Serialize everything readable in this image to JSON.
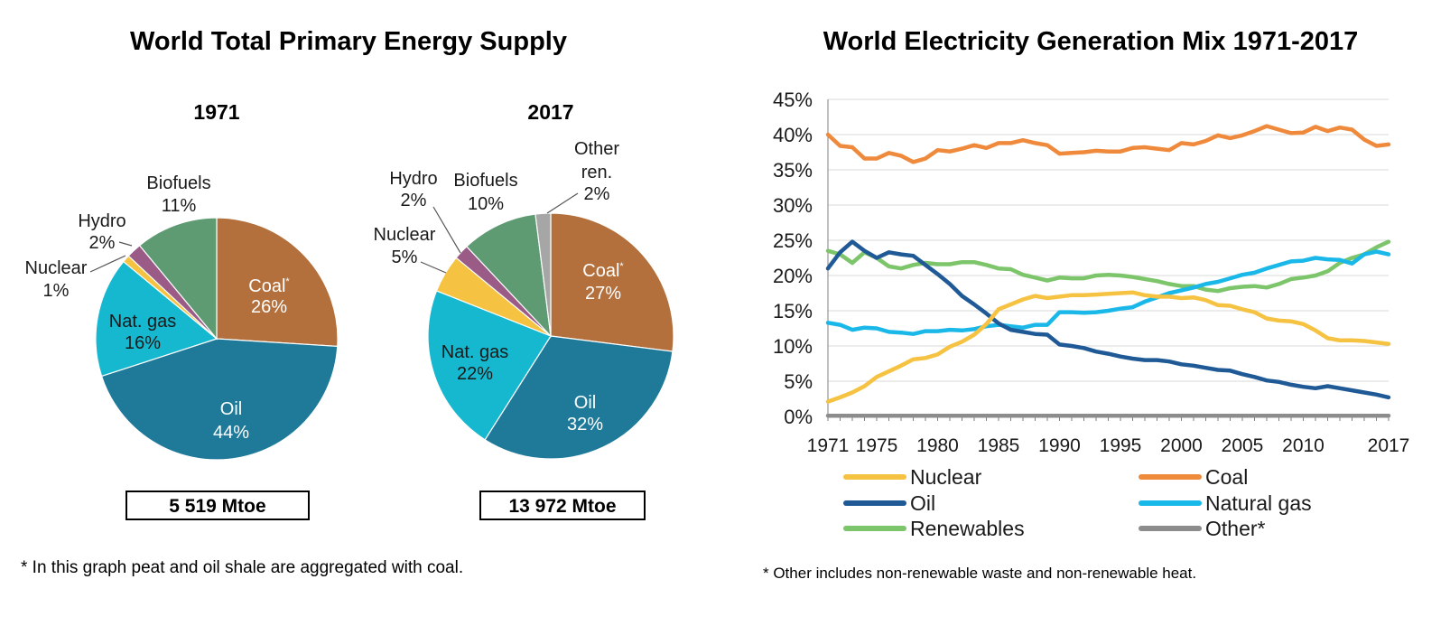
{
  "left_panel": {
    "title": "World Total Primary Energy Supply",
    "footnote": "* In this graph peat and oil shale are aggregated with coal."
  },
  "right_panel": {
    "title": "World Electricity Generation Mix 1971-2017",
    "footnote": "* Other includes non-renewable waste and non-renewable heat."
  },
  "chart_data": [
    {
      "type": "pie",
      "title": "1971",
      "total_label": "5 519 Mtoe",
      "slices": [
        {
          "name": "Coal",
          "value": 26,
          "label": "Coal",
          "asterisk": "*",
          "pct": "26%",
          "color": "#b4703c",
          "text_color": "#ffffff"
        },
        {
          "name": "Oil",
          "value": 44,
          "label": "Oil",
          "pct": "44%",
          "color": "#1f7a9a",
          "text_color": "#ffffff"
        },
        {
          "name": "Nat. gas",
          "value": 16,
          "label": "Nat. gas",
          "pct": "16%",
          "color": "#16b8d0",
          "text_color": "#1a1a1a"
        },
        {
          "name": "Nuclear",
          "value": 1,
          "label": "Nuclear",
          "pct": "1%",
          "color": "#f5c242",
          "text_color": "#1a1a1a"
        },
        {
          "name": "Hydro",
          "value": 2,
          "label": "Hydro",
          "pct": "2%",
          "color": "#9a5b86",
          "text_color": "#1a1a1a"
        },
        {
          "name": "Biofuels",
          "value": 11,
          "label": "Biofuels",
          "pct": "11%",
          "color": "#5e9a72",
          "text_color": "#1a1a1a"
        }
      ]
    },
    {
      "type": "pie",
      "title": "2017",
      "total_label": "13 972 Mtoe",
      "slices": [
        {
          "name": "Coal",
          "value": 27,
          "label": "Coal",
          "asterisk": "*",
          "pct": "27%",
          "color": "#b4703c",
          "text_color": "#ffffff"
        },
        {
          "name": "Oil",
          "value": 32,
          "label": "Oil",
          "pct": "32%",
          "color": "#1f7a9a",
          "text_color": "#ffffff"
        },
        {
          "name": "Nat. gas",
          "value": 22,
          "label": "Nat. gas",
          "pct": "22%",
          "color": "#16b8d0",
          "text_color": "#1a1a1a"
        },
        {
          "name": "Nuclear",
          "value": 5,
          "label": "Nuclear",
          "pct": "5%",
          "color": "#f5c242",
          "text_color": "#1a1a1a"
        },
        {
          "name": "Hydro",
          "value": 2,
          "label": "Hydro",
          "pct": "2%",
          "color": "#9a5b86",
          "text_color": "#1a1a1a"
        },
        {
          "name": "Biofuels",
          "value": 10,
          "label": "Biofuels",
          "pct": "10%",
          "color": "#5e9a72",
          "text_color": "#1a1a1a"
        },
        {
          "name": "Other ren.",
          "value": 2,
          "label": "Other ren.",
          "pct": "2%",
          "color": "#a6a6a6",
          "text_color": "#1a1a1a"
        }
      ]
    },
    {
      "type": "line",
      "title": "",
      "xlabel": "",
      "ylabel": "",
      "xlim": [
        1971,
        2017
      ],
      "ylim": [
        0,
        45
      ],
      "xticks": [
        1971,
        1975,
        1980,
        1985,
        1990,
        1995,
        2000,
        2005,
        2010,
        2017
      ],
      "yticks": [
        0,
        5,
        10,
        15,
        20,
        25,
        30,
        35,
        40,
        45
      ],
      "ytick_suffix": "%",
      "grid": "horizontal",
      "legend": "bottom",
      "x": [
        1971,
        1972,
        1973,
        1974,
        1975,
        1976,
        1977,
        1978,
        1979,
        1980,
        1981,
        1982,
        1983,
        1984,
        1985,
        1986,
        1987,
        1988,
        1989,
        1990,
        1991,
        1992,
        1993,
        1994,
        1995,
        1996,
        1997,
        1998,
        1999,
        2000,
        2001,
        2002,
        2003,
        2004,
        2005,
        2006,
        2007,
        2008,
        2009,
        2010,
        2011,
        2012,
        2013,
        2014,
        2015,
        2016,
        2017
      ],
      "series": [
        {
          "name": "Nuclear",
          "color": "#f5c242",
          "values": [
            2.1,
            2.7,
            3.4,
            4.3,
            5.6,
            6.4,
            7.2,
            8.1,
            8.3,
            8.8,
            9.9,
            10.6,
            11.6,
            13.1,
            15.2,
            15.9,
            16.6,
            17.1,
            16.8,
            17.0,
            17.2,
            17.2,
            17.3,
            17.4,
            17.5,
            17.6,
            17.2,
            17.0,
            17.0,
            16.8,
            16.9,
            16.5,
            15.8,
            15.7,
            15.2,
            14.8,
            13.9,
            13.6,
            13.5,
            13.1,
            12.2,
            11.1,
            10.8,
            10.8,
            10.7,
            10.5,
            10.3
          ]
        },
        {
          "name": "Coal",
          "color": "#ef8a3c",
          "values": [
            40.0,
            38.4,
            38.2,
            36.6,
            36.6,
            37.4,
            37.0,
            36.1,
            36.6,
            37.8,
            37.6,
            38.0,
            38.5,
            38.1,
            38.8,
            38.8,
            39.2,
            38.8,
            38.5,
            37.3,
            37.4,
            37.5,
            37.7,
            37.6,
            37.6,
            38.1,
            38.2,
            38.0,
            37.8,
            38.8,
            38.6,
            39.1,
            39.9,
            39.5,
            39.9,
            40.5,
            41.2,
            40.7,
            40.2,
            40.3,
            41.1,
            40.5,
            41.0,
            40.7,
            39.3,
            38.4,
            38.6
          ]
        },
        {
          "name": "Oil",
          "color": "#1f5a96",
          "values": [
            21.0,
            23.3,
            24.8,
            23.5,
            22.5,
            23.3,
            23.0,
            22.8,
            21.5,
            20.2,
            18.8,
            17.1,
            15.9,
            14.6,
            13.2,
            12.3,
            12.0,
            11.7,
            11.6,
            10.2,
            10.0,
            9.7,
            9.2,
            8.9,
            8.5,
            8.2,
            8.0,
            8.0,
            7.8,
            7.4,
            7.2,
            6.9,
            6.6,
            6.5,
            6.0,
            5.6,
            5.1,
            4.9,
            4.5,
            4.2,
            4.0,
            4.3,
            4.0,
            3.7,
            3.4,
            3.1,
            2.7
          ]
        },
        {
          "name": "Natural gas",
          "color": "#1ab8e8",
          "values": [
            13.3,
            13.0,
            12.3,
            12.6,
            12.5,
            12.0,
            11.9,
            11.7,
            12.1,
            12.1,
            12.3,
            12.2,
            12.4,
            12.8,
            13.0,
            12.8,
            12.6,
            13.0,
            13.0,
            14.8,
            14.8,
            14.7,
            14.8,
            15.0,
            15.3,
            15.5,
            16.3,
            16.9,
            17.5,
            17.9,
            18.3,
            18.8,
            19.1,
            19.6,
            20.1,
            20.4,
            21.0,
            21.5,
            22.0,
            22.1,
            22.5,
            22.3,
            22.2,
            21.7,
            23.0,
            23.4,
            23.0
          ]
        },
        {
          "name": "Renewables",
          "color": "#7cc56a",
          "values": [
            23.5,
            23.0,
            21.8,
            23.3,
            22.5,
            21.3,
            21.0,
            21.5,
            21.8,
            21.6,
            21.6,
            21.9,
            21.9,
            21.5,
            21.0,
            20.9,
            20.1,
            19.7,
            19.3,
            19.7,
            19.6,
            19.6,
            20.0,
            20.1,
            20.0,
            19.8,
            19.5,
            19.2,
            18.8,
            18.5,
            18.5,
            18.0,
            17.8,
            18.2,
            18.4,
            18.5,
            18.3,
            18.8,
            19.5,
            19.7,
            20.0,
            20.6,
            21.8,
            22.5,
            23.0,
            24.0,
            24.8
          ]
        },
        {
          "name": "Other*",
          "color": "#8c8c8c",
          "values": [
            0.1,
            0.1,
            0.1,
            0.1,
            0.1,
            0.1,
            0.1,
            0.1,
            0.1,
            0.1,
            0.1,
            0.1,
            0.1,
            0.1,
            0.1,
            0.1,
            0.1,
            0.1,
            0.1,
            0.1,
            0.1,
            0.1,
            0.1,
            0.1,
            0.1,
            0.1,
            0.1,
            0.1,
            0.1,
            0.1,
            0.1,
            0.1,
            0.1,
            0.1,
            0.1,
            0.1,
            0.1,
            0.1,
            0.1,
            0.1,
            0.1,
            0.1,
            0.1,
            0.1,
            0.1,
            0.1,
            0.1
          ]
        }
      ]
    }
  ]
}
